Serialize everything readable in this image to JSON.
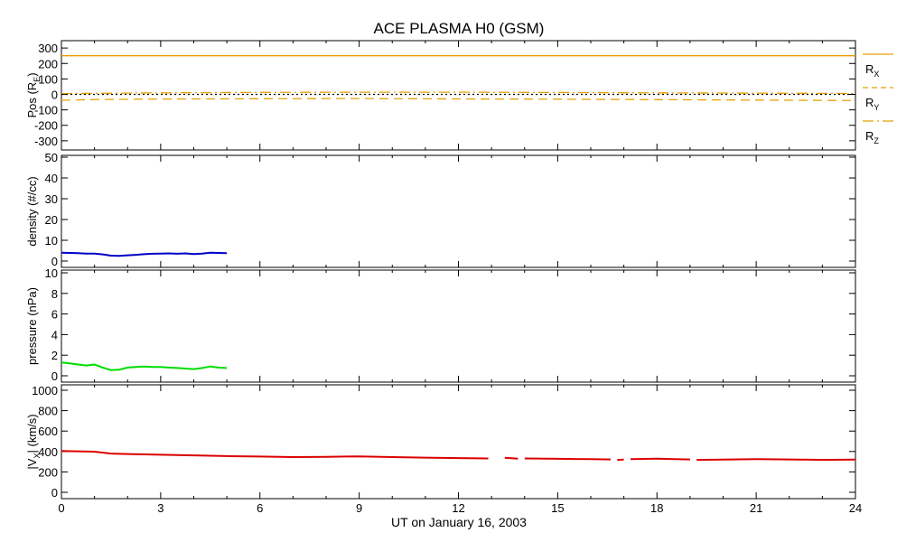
{
  "title": "ACE PLASMA H0 (GSM)",
  "xlabel": "UT on January 16, 2003",
  "x_ticks": [
    "0",
    "3",
    "6",
    "9",
    "12",
    "15",
    "18",
    "21",
    "24"
  ],
  "legend": [
    {
      "label": "R",
      "sub": "X",
      "style": "solid",
      "color": "#e8a000"
    },
    {
      "label": "R",
      "sub": "Y",
      "style": "dashed",
      "color": "#e8a000"
    },
    {
      "label": "R",
      "sub": "Z",
      "style": "dashdot",
      "color": "#e8a000"
    }
  ],
  "panels": [
    {
      "id": "position",
      "ylabel": "Pos (R",
      "ylabel_sub": "E",
      "ylabel_tail": ")",
      "ylim": [
        -330,
        330
      ],
      "yticks": [
        "300",
        "200",
        "100",
        "0",
        "-100",
        "-200",
        "-300"
      ],
      "tick_values": [
        300,
        200,
        100,
        0,
        -100,
        -200,
        -300
      ]
    },
    {
      "id": "density",
      "ylabel": "density (#/cc)",
      "ylim": [
        0,
        50
      ],
      "yticks": [
        "50",
        "40",
        "30",
        "20",
        "10",
        "0"
      ],
      "tick_values": [
        50,
        40,
        30,
        20,
        10,
        0
      ]
    },
    {
      "id": "pressure",
      "ylabel": "pressure (nPa)",
      "ylim": [
        0,
        10
      ],
      "yticks": [
        "10",
        "8",
        "6",
        "4",
        "2",
        "0"
      ],
      "tick_values": [
        10,
        8,
        6,
        4,
        2,
        0
      ]
    },
    {
      "id": "velocity",
      "ylabel": "|V",
      "ylabel_sub": "X",
      "ylabel_tail": "| (km/s)",
      "ylim": [
        0,
        1000
      ],
      "yticks": [
        "1000",
        "800",
        "600",
        "400",
        "200",
        "0"
      ],
      "tick_values": [
        1000,
        800,
        600,
        400,
        200,
        0
      ]
    }
  ],
  "chart_data": [
    {
      "type": "line",
      "panel": "position",
      "xlabel": "",
      "ylabel": "Pos (RE)",
      "xlim": [
        0,
        24
      ],
      "ylim": [
        -330,
        330
      ],
      "series": [
        {
          "name": "RX",
          "color": "#e8a000",
          "style": "solid",
          "x": [
            0,
            24
          ],
          "y": [
            250,
            250
          ]
        },
        {
          "name": "RY",
          "color": "#e8a000",
          "style": "dashed",
          "x": [
            0,
            1,
            3,
            6,
            9,
            12,
            15,
            18,
            21,
            24
          ],
          "y": [
            -38,
            -33,
            -30,
            -28,
            -27,
            -29,
            -31,
            -34,
            -37,
            -40
          ]
        },
        {
          "name": "RZ",
          "color": "#e8a000",
          "style": "dashdot",
          "x": [
            0,
            3,
            6,
            9,
            12,
            15,
            18,
            21,
            24
          ],
          "y": [
            5,
            10,
            13,
            14,
            14,
            12,
            10,
            8,
            6
          ]
        },
        {
          "name": "",
          "color": "#000000",
          "style": "dotted",
          "x": [
            0,
            24
          ],
          "y": [
            0,
            0
          ]
        }
      ]
    },
    {
      "type": "line",
      "panel": "density",
      "xlabel": "",
      "ylabel": "density (#/cc)",
      "xlim": [
        0,
        24
      ],
      "ylim": [
        0,
        50
      ],
      "series": [
        {
          "color": "#0000c8",
          "x": [
            0,
            0.25,
            0.5,
            0.75,
            1.0,
            1.25,
            1.5,
            1.75,
            2.0,
            2.25,
            2.5,
            2.75,
            3.0,
            3.25,
            3.5,
            3.75,
            4.0,
            4.25,
            4.5,
            4.75,
            5.0
          ],
          "y": [
            4.0,
            3.9,
            3.8,
            3.6,
            3.6,
            3.2,
            2.6,
            2.5,
            2.8,
            3.0,
            3.3,
            3.5,
            3.6,
            3.7,
            3.5,
            3.7,
            3.4,
            3.6,
            4.0,
            3.9,
            3.8
          ]
        }
      ]
    },
    {
      "type": "line",
      "panel": "pressure",
      "xlabel": "",
      "ylabel": "pressure (nPa)",
      "xlim": [
        0,
        24
      ],
      "ylim": [
        0,
        10
      ],
      "series": [
        {
          "color": "#00dc00",
          "x": [
            0,
            0.25,
            0.5,
            0.75,
            1.0,
            1.25,
            1.5,
            1.75,
            2.0,
            2.25,
            2.5,
            2.75,
            3.0,
            3.25,
            3.5,
            3.75,
            4.0,
            4.25,
            4.5,
            4.75,
            5.0
          ],
          "y": [
            1.3,
            1.2,
            1.1,
            1.0,
            1.1,
            0.8,
            0.55,
            0.6,
            0.8,
            0.85,
            0.9,
            0.85,
            0.85,
            0.8,
            0.75,
            0.7,
            0.65,
            0.75,
            0.9,
            0.8,
            0.75
          ]
        }
      ]
    },
    {
      "type": "line",
      "panel": "velocity",
      "xlabel": "UT on January 16, 2003",
      "ylabel": "|VX| (km/s)",
      "xlim": [
        0,
        24
      ],
      "ylim": [
        0,
        1000
      ],
      "series": [
        {
          "color": "#dc0000",
          "segments": [
            {
              "x": [
                0,
                0.5,
                1.0,
                1.5,
                2.0,
                3.0,
                4.0,
                5.0,
                6.0,
                7.0,
                8.0,
                9.0,
                10.0,
                11.0,
                12.0,
                12.9
              ],
              "y": [
                405,
                402,
                398,
                380,
                375,
                368,
                362,
                355,
                350,
                345,
                348,
                352,
                345,
                340,
                335,
                332
              ]
            },
            {
              "x": [
                13.4,
                13.8
              ],
              "y": [
                338,
                330
              ]
            },
            {
              "x": [
                14.0,
                15.0,
                16.0,
                16.6
              ],
              "y": [
                332,
                328,
                325,
                322
              ]
            },
            {
              "x": [
                16.8,
                17.0
              ],
              "y": [
                318,
                320
              ]
            },
            {
              "x": [
                17.2,
                18.0,
                19.0
              ],
              "y": [
                325,
                330,
                322
              ]
            },
            {
              "x": [
                19.2,
                20.0,
                21.0,
                22.0,
                23.0,
                24.0
              ],
              "y": [
                318,
                320,
                325,
                322,
                318,
                320
              ]
            }
          ]
        }
      ]
    }
  ]
}
